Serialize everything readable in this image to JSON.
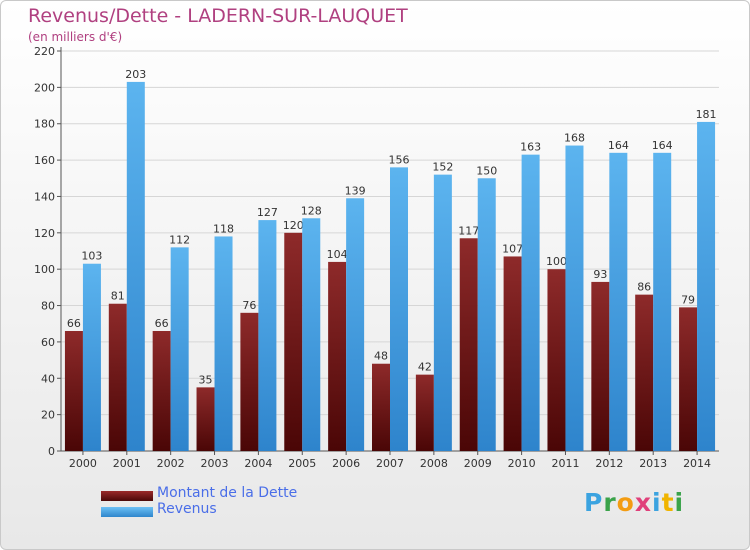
{
  "title": "Revenus/Dette - LADERN-SUR-LAUQUET",
  "subtitle": "(en milliers d'€)",
  "logo": {
    "letters": [
      "P",
      "r",
      "o",
      "x",
      "i",
      "t",
      "i"
    ],
    "colors": [
      "#3ba3e0",
      "#3aa34a",
      "#f39c12",
      "#e0407a",
      "#3ba3e0",
      "#f0b400",
      "#3aa34a"
    ]
  },
  "chart_data": {
    "type": "bar",
    "title": "Revenus/Dette - LADERN-SUR-LAUQUET",
    "subtitle": "(en milliers d'€)",
    "categories": [
      "2000",
      "2001",
      "2002",
      "2003",
      "2004",
      "2005",
      "2006",
      "2007",
      "2008",
      "2009",
      "2010",
      "2011",
      "2012",
      "2013",
      "2014"
    ],
    "series": [
      {
        "name": "Montant de la Dette",
        "color": "#7a1a1a",
        "values": [
          66,
          81,
          66,
          35,
          76,
          120,
          104,
          48,
          42,
          117,
          107,
          100,
          93,
          86,
          79
        ]
      },
      {
        "name": "Revenus",
        "color": "#4aa3e8",
        "values": [
          103,
          203,
          112,
          118,
          127,
          128,
          139,
          156,
          152,
          150,
          163,
          168,
          164,
          164,
          181
        ]
      }
    ],
    "ylim": [
      0,
      220
    ],
    "yticks": [
      0,
      20,
      40,
      60,
      80,
      100,
      120,
      140,
      160,
      180,
      200,
      220
    ],
    "grid": true,
    "legend": "bottom-left"
  }
}
